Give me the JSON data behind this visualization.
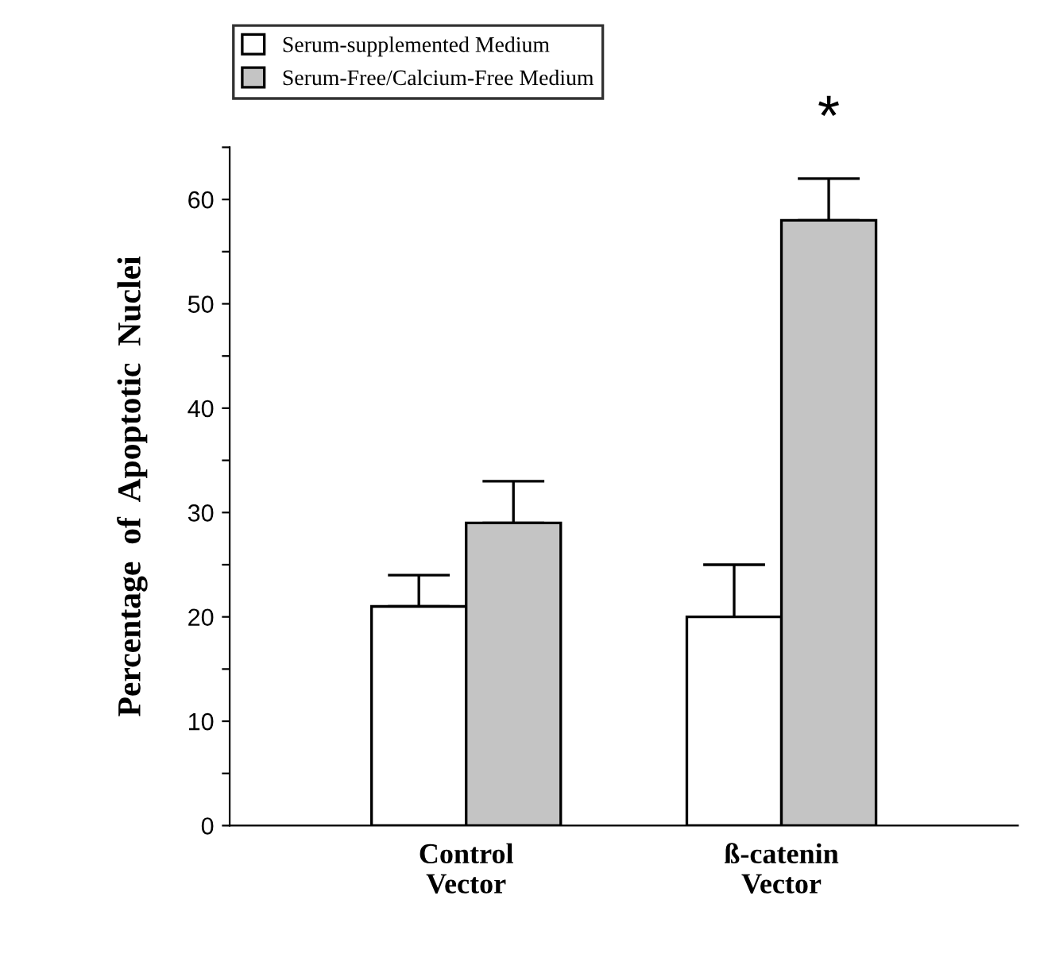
{
  "chart_data": {
    "type": "bar",
    "categories": [
      "Control\nVector",
      "ß-catenin\nVector"
    ],
    "series": [
      {
        "name": "Serum-supplemented Medium",
        "color": "#ffffff",
        "values": [
          21,
          20
        ],
        "errors": [
          [
            21,
            24
          ],
          [
            20,
            25
          ]
        ]
      },
      {
        "name": "Serum-Free/Calcium-Free Medium",
        "color": "#c4c4c4",
        "values": [
          29,
          58
        ],
        "errors": [
          [
            29,
            33
          ],
          [
            58,
            62
          ]
        ]
      }
    ],
    "ylabel": "Percentage  of  Apoptotic  Nuclei",
    "ylim": [
      0,
      65
    ],
    "yticks": [
      0,
      {
        "value": 5,
        "label": null
      },
      10,
      {
        "value": 15,
        "label": null
      },
      20,
      {
        "value": 25,
        "label": null
      },
      30,
      {
        "value": 35,
        "label": null
      },
      40,
      {
        "value": 45,
        "label": null
      },
      50,
      {
        "value": 55,
        "label": null
      },
      60,
      {
        "value": 65,
        "label": null
      }
    ],
    "annotations": [
      "*"
    ],
    "legend": "top left",
    "grid": false
  }
}
